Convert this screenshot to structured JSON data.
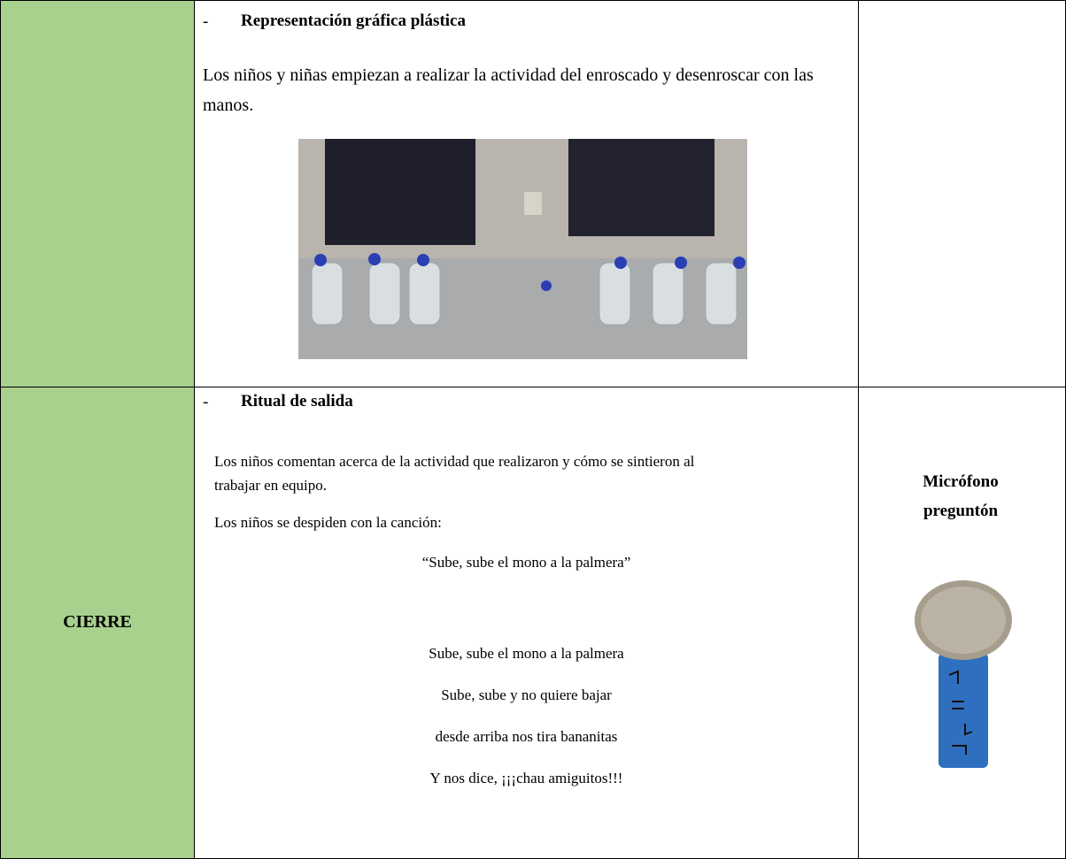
{
  "table": {
    "rows": [
      {
        "activity": {
          "bullet": "-",
          "heading": "Representación gráfica plástica",
          "paragraphs": [
            "Los niños y niñas empiezan a realizar la actividad del enroscado y desenroscar con las manos."
          ]
        }
      },
      {
        "phase": "CIERRE",
        "activity": {
          "bullet": "-",
          "heading": "Ritual de salida",
          "paragraphs": [
            "Los niños comentan acerca de la actividad que realizaron y cómo se sintieron al trabajar en equipo.",
            "Los niños se despiden con la canción:"
          ],
          "song_title": "“Sube, sube el mono a la palmera”",
          "song_lines": [
            "Sube, sube el mono a la palmera",
            "Sube, sube y no quiere bajar",
            "desde arriba nos tira bananitas",
            "Y nos dice, ¡¡¡chau amiguitos!!!"
          ]
        },
        "resource": "Micrófono preguntón"
      }
    ]
  }
}
